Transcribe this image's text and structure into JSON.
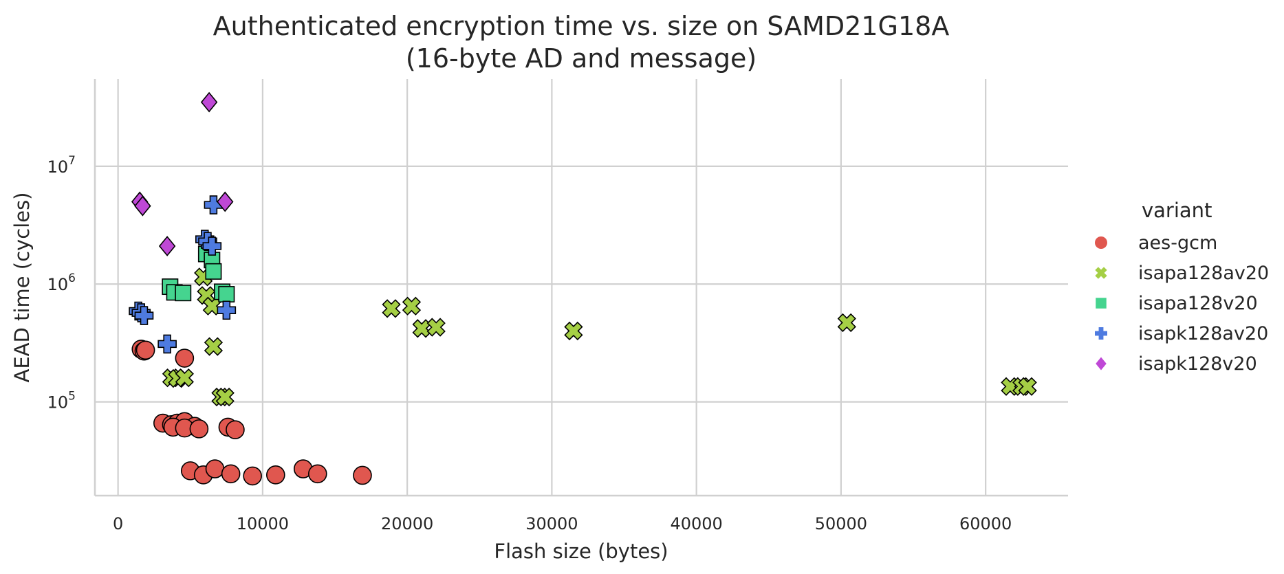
{
  "chart_data": {
    "type": "scatter",
    "title": [
      "Authenticated encryption time vs. size on SAMD21G18A",
      "(16-byte AD and message)"
    ],
    "xlabel": "Flash size (bytes)",
    "ylabel": "AEAD time (cycles)",
    "x_ticks": [
      0,
      10000,
      20000,
      30000,
      40000,
      50000,
      60000
    ],
    "x_tick_labels": [
      "0",
      "10000",
      "20000",
      "30000",
      "40000",
      "50000",
      "60000"
    ],
    "xlim": [
      -1600,
      65700
    ],
    "y_scale": "log",
    "ylim": [
      16000,
      55000000
    ],
    "y_ticks": [
      100000,
      1000000,
      10000000
    ],
    "y_tick_exponents": [
      "5",
      "6",
      "7"
    ],
    "y_tick_base": "10",
    "grid": true,
    "legend": {
      "title": "variant",
      "placement": "right, outside"
    },
    "series": [
      {
        "name": "aes-gcm",
        "marker": "circle",
        "color": "#e0574f",
        "points": [
          [
            1600,
            280000
          ],
          [
            1800,
            270000
          ],
          [
            1900,
            275000
          ],
          [
            4600,
            235000
          ],
          [
            3100,
            66000
          ],
          [
            3700,
            64000
          ],
          [
            4100,
            66000
          ],
          [
            4600,
            68000
          ],
          [
            5300,
            62000
          ],
          [
            3800,
            61000
          ],
          [
            4600,
            60000
          ],
          [
            5600,
            59000
          ],
          [
            7600,
            61000
          ],
          [
            8100,
            58000
          ],
          [
            5000,
            26000
          ],
          [
            5900,
            24000
          ],
          [
            6700,
            27000
          ],
          [
            7800,
            24500
          ],
          [
            9300,
            23500
          ],
          [
            10900,
            24000
          ],
          [
            12800,
            27000
          ],
          [
            13800,
            24500
          ],
          [
            16900,
            23800
          ]
        ]
      },
      {
        "name": "isapa128av20",
        "marker": "x",
        "color": "#a5cf45",
        "points": [
          [
            5900,
            1150000
          ],
          [
            6100,
            800000
          ],
          [
            6500,
            650000
          ],
          [
            6600,
            295000
          ],
          [
            3700,
            160000
          ],
          [
            4100,
            158000
          ],
          [
            4600,
            160000
          ],
          [
            7100,
            110000
          ],
          [
            7400,
            110000
          ],
          [
            18900,
            620000
          ],
          [
            20300,
            650000
          ],
          [
            21000,
            420000
          ],
          [
            22000,
            430000
          ],
          [
            31500,
            400000
          ],
          [
            50400,
            470000
          ],
          [
            61700,
            135000
          ],
          [
            62500,
            135000
          ],
          [
            62900,
            135000
          ]
        ]
      },
      {
        "name": "isapa128v20",
        "marker": "square",
        "color": "#45d48f",
        "points": [
          [
            3600,
            950000
          ],
          [
            3900,
            850000
          ],
          [
            4500,
            840000
          ],
          [
            6100,
            1800000
          ],
          [
            6500,
            1600000
          ],
          [
            6600,
            1280000
          ],
          [
            7200,
            860000
          ],
          [
            7500,
            820000
          ]
        ]
      },
      {
        "name": "isapk128av20",
        "marker": "plus",
        "color": "#4e7be0",
        "points": [
          [
            1400,
            590000
          ],
          [
            1600,
            570000
          ],
          [
            1800,
            540000
          ],
          [
            3400,
            310000
          ],
          [
            6000,
            2400000
          ],
          [
            6200,
            2300000
          ],
          [
            6500,
            2100000
          ],
          [
            6600,
            4700000
          ],
          [
            7500,
            600000
          ]
        ]
      },
      {
        "name": "isapk128v20",
        "marker": "diamond",
        "color": "#bf48d6",
        "points": [
          [
            1500,
            5000000
          ],
          [
            1700,
            4600000
          ],
          [
            3400,
            2100000
          ],
          [
            6300,
            35000000
          ],
          [
            7400,
            5000000
          ]
        ]
      }
    ]
  }
}
